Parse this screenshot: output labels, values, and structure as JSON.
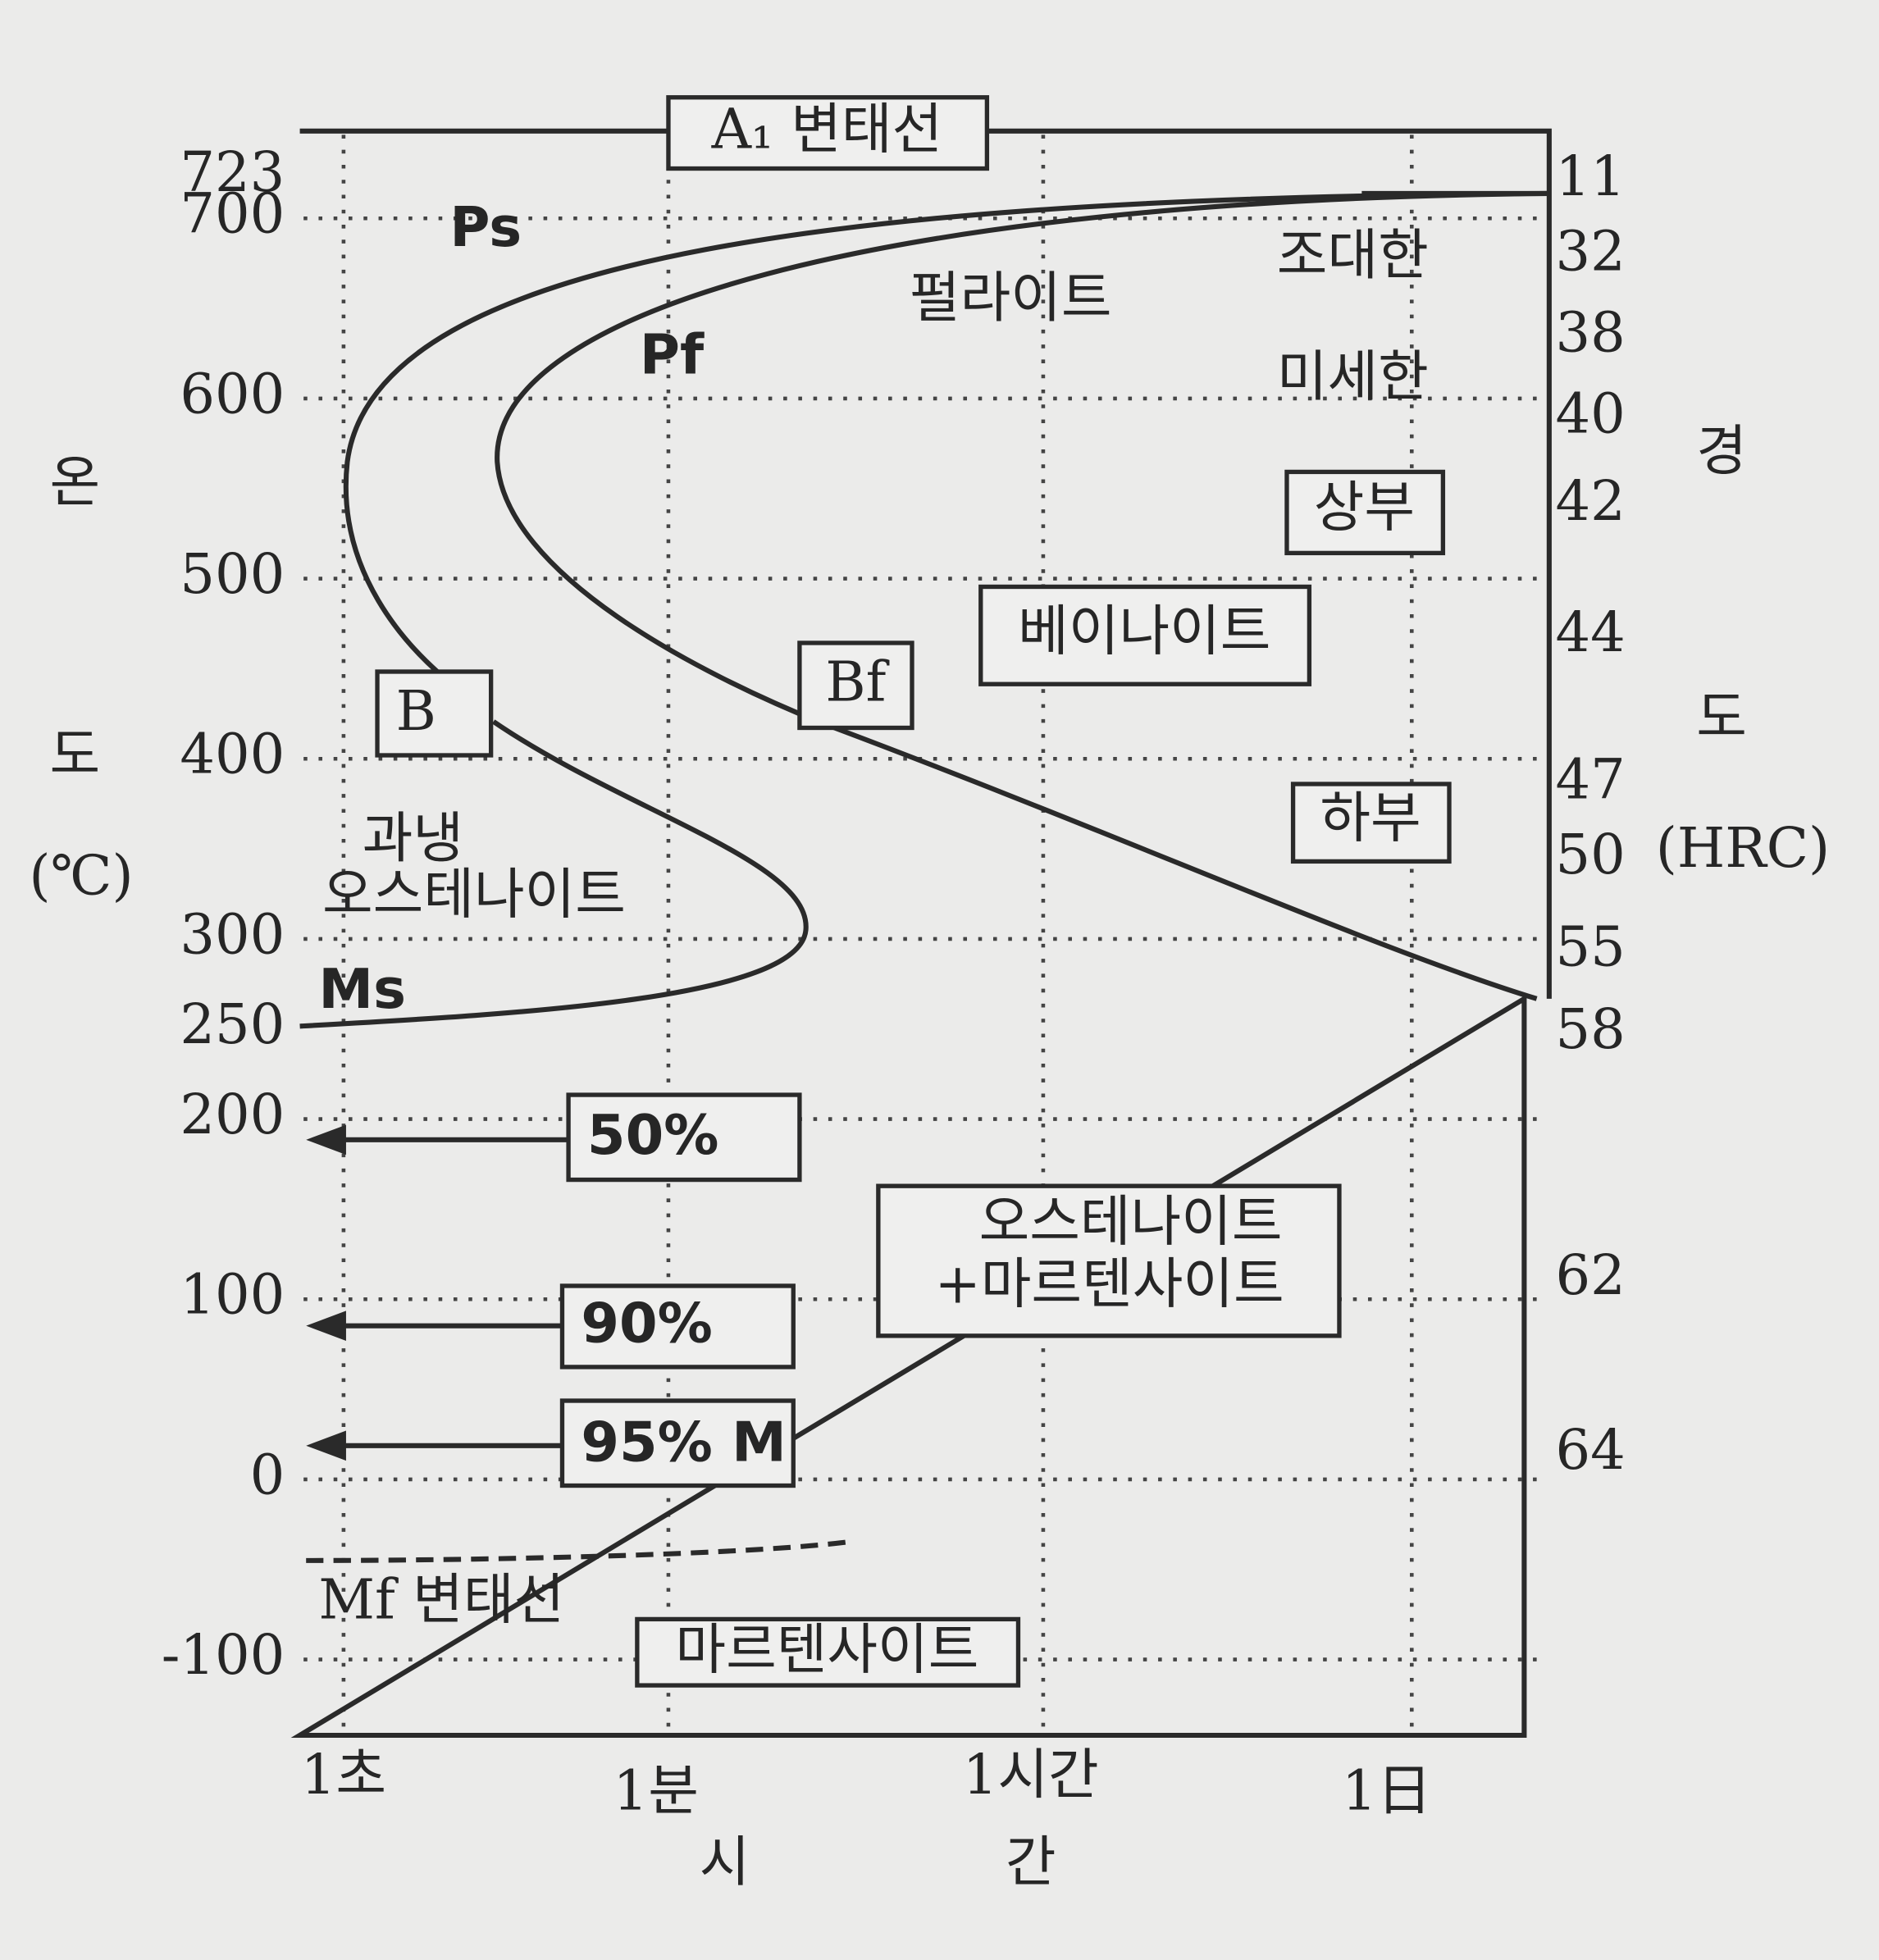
{
  "axes": {
    "y_title": [
      "온",
      "도",
      "(℃)"
    ],
    "yticks": [
      723,
      700,
      600,
      500,
      400,
      300,
      250,
      200,
      100,
      0,
      -100
    ],
    "y2_title": [
      "경",
      "도",
      "(HRC)"
    ],
    "y2_labels": [
      11,
      32,
      38,
      40,
      42,
      44,
      47,
      50,
      55,
      58,
      62,
      64
    ],
    "x_labels": [
      "1초",
      "1분",
      "1시간",
      "1日"
    ],
    "x_title": [
      "시",
      "간"
    ]
  },
  "labels": {
    "a1": "A₁ 변태선",
    "ps": "Ps",
    "pf": "Pf",
    "pearlite": "펄라이트",
    "coarse": "조대한",
    "fine": "미세한",
    "upper": "상부",
    "bainite": "베이나이트",
    "bf": "Bf",
    "b": "B",
    "lower": "하부",
    "supercooled": "과냉",
    "austenite": "오스테나이트",
    "ms": "Ms",
    "p50": "50%",
    "p90": "90%",
    "p95": "95% M",
    "mix": [
      "오스테나이트",
      "+마르텐사이트"
    ],
    "mf": "Mf 변태선",
    "martensite": "마르텐사이트"
  }
}
